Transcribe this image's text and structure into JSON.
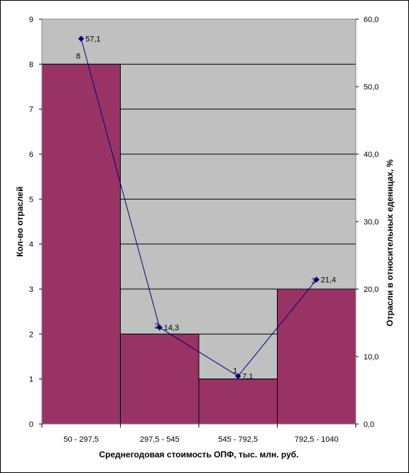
{
  "chart_data": {
    "type": "bar",
    "categories": [
      "50 - 297,5",
      "297,5 - 545",
      "545 - 792,5",
      "792,5 - 1040"
    ],
    "series": [
      {
        "values": [
          8,
          2,
          1,
          3
        ],
        "axis": "left",
        "kind": "bar",
        "data_labels": [
          "8",
          "2",
          "1",
          "3"
        ]
      },
      {
        "values": [
          57.1,
          14.3,
          7.1,
          21.4
        ],
        "axis": "right",
        "kind": "line",
        "data_labels": [
          "57,1",
          "14,3",
          "7,1",
          "21,4"
        ]
      }
    ],
    "xlabel": "Среднегодовая стоимость ОПФ, тыс. млн. руб.",
    "ylabel": "Кол-во отраслей",
    "y2label": "Отрасли в относительных еденицах, %",
    "ylim": [
      0,
      9
    ],
    "y2lim": [
      0,
      60
    ],
    "yticks": [
      "0",
      "1",
      "2",
      "3",
      "4",
      "5",
      "6",
      "7",
      "8",
      "9"
    ],
    "y2ticks": [
      "0,0",
      "10,0",
      "20,0",
      "30,0",
      "40,0",
      "50,0",
      "60,0"
    ],
    "grid": true,
    "legend": "none",
    "colors": {
      "plot_bg": "#c0c0c0",
      "bar": "#993366",
      "line": "#000080",
      "grid": "#000000"
    }
  }
}
